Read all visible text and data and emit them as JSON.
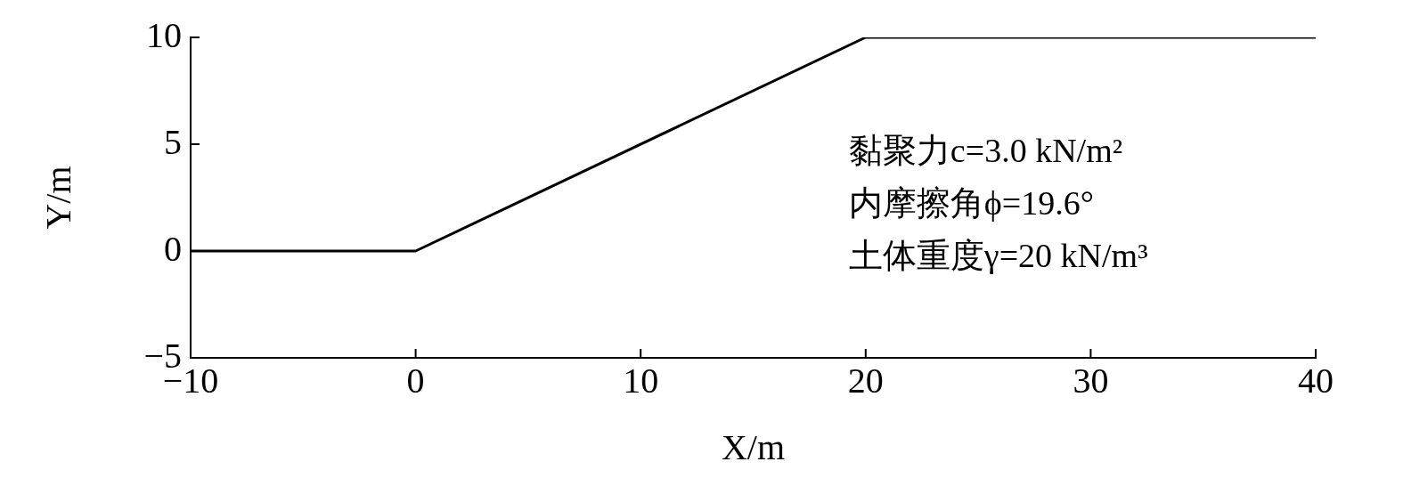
{
  "chart_data": {
    "type": "line",
    "xlabel": "X/m",
    "ylabel": "Y/m",
    "x": [
      -10,
      0,
      20,
      40
    ],
    "series": [
      {
        "color": "#000000",
        "values": [
          0,
          0,
          10,
          10
        ]
      }
    ],
    "xlim": [
      -10,
      40
    ],
    "xticks": [
      -10,
      0,
      10,
      20,
      30,
      40
    ],
    "ylim": [
      -5,
      10
    ],
    "yticks": [
      -5,
      0,
      5,
      10
    ],
    "grid": false,
    "legend": false,
    "marker": "none",
    "line_style": "solid",
    "annotations": [
      "黏聚力c=3.0 kN/m²",
      "内摩擦角ϕ=19.6°",
      "土体重度γ=20 kN/m³"
    ]
  }
}
